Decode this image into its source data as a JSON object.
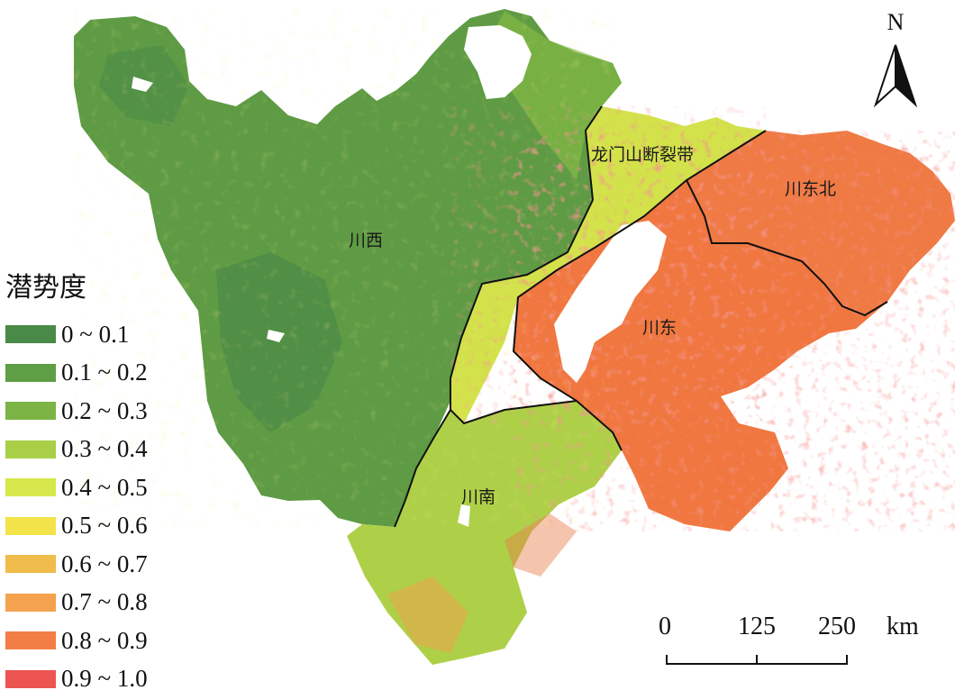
{
  "map": {
    "regions": [
      {
        "id": "chuanxi",
        "label": "川西"
      },
      {
        "id": "longmenshan",
        "label": "龙门山断裂带"
      },
      {
        "id": "chuandongbei",
        "label": "川东北"
      },
      {
        "id": "chuandong",
        "label": "川东"
      },
      {
        "id": "chuannan",
        "label": "川南"
      }
    ]
  },
  "legend": {
    "title": "潜势度",
    "items": [
      {
        "label": "0 ~ 0.1",
        "color": "#4a8a48"
      },
      {
        "label": "0.1 ~ 0.2",
        "color": "#5e9e44"
      },
      {
        "label": "0.2 ~ 0.3",
        "color": "#7cb446"
      },
      {
        "label": "0.3 ~ 0.4",
        "color": "#a8cf46"
      },
      {
        "label": "0.4 ~ 0.5",
        "color": "#d7e84c"
      },
      {
        "label": "0.5 ~ 0.6",
        "color": "#f2e34a"
      },
      {
        "label": "0.6 ~ 0.7",
        "color": "#f0bc4c"
      },
      {
        "label": "0.7 ~ 0.8",
        "color": "#f4a24e"
      },
      {
        "label": "0.8 ~ 0.9",
        "color": "#f27e46"
      },
      {
        "label": "0.9 ~ 1.0",
        "color": "#ec5452"
      }
    ]
  },
  "north_arrow": {
    "label": "N"
  },
  "scale_bar": {
    "ticks": [
      "0",
      "125",
      "250"
    ],
    "unit": "km"
  }
}
